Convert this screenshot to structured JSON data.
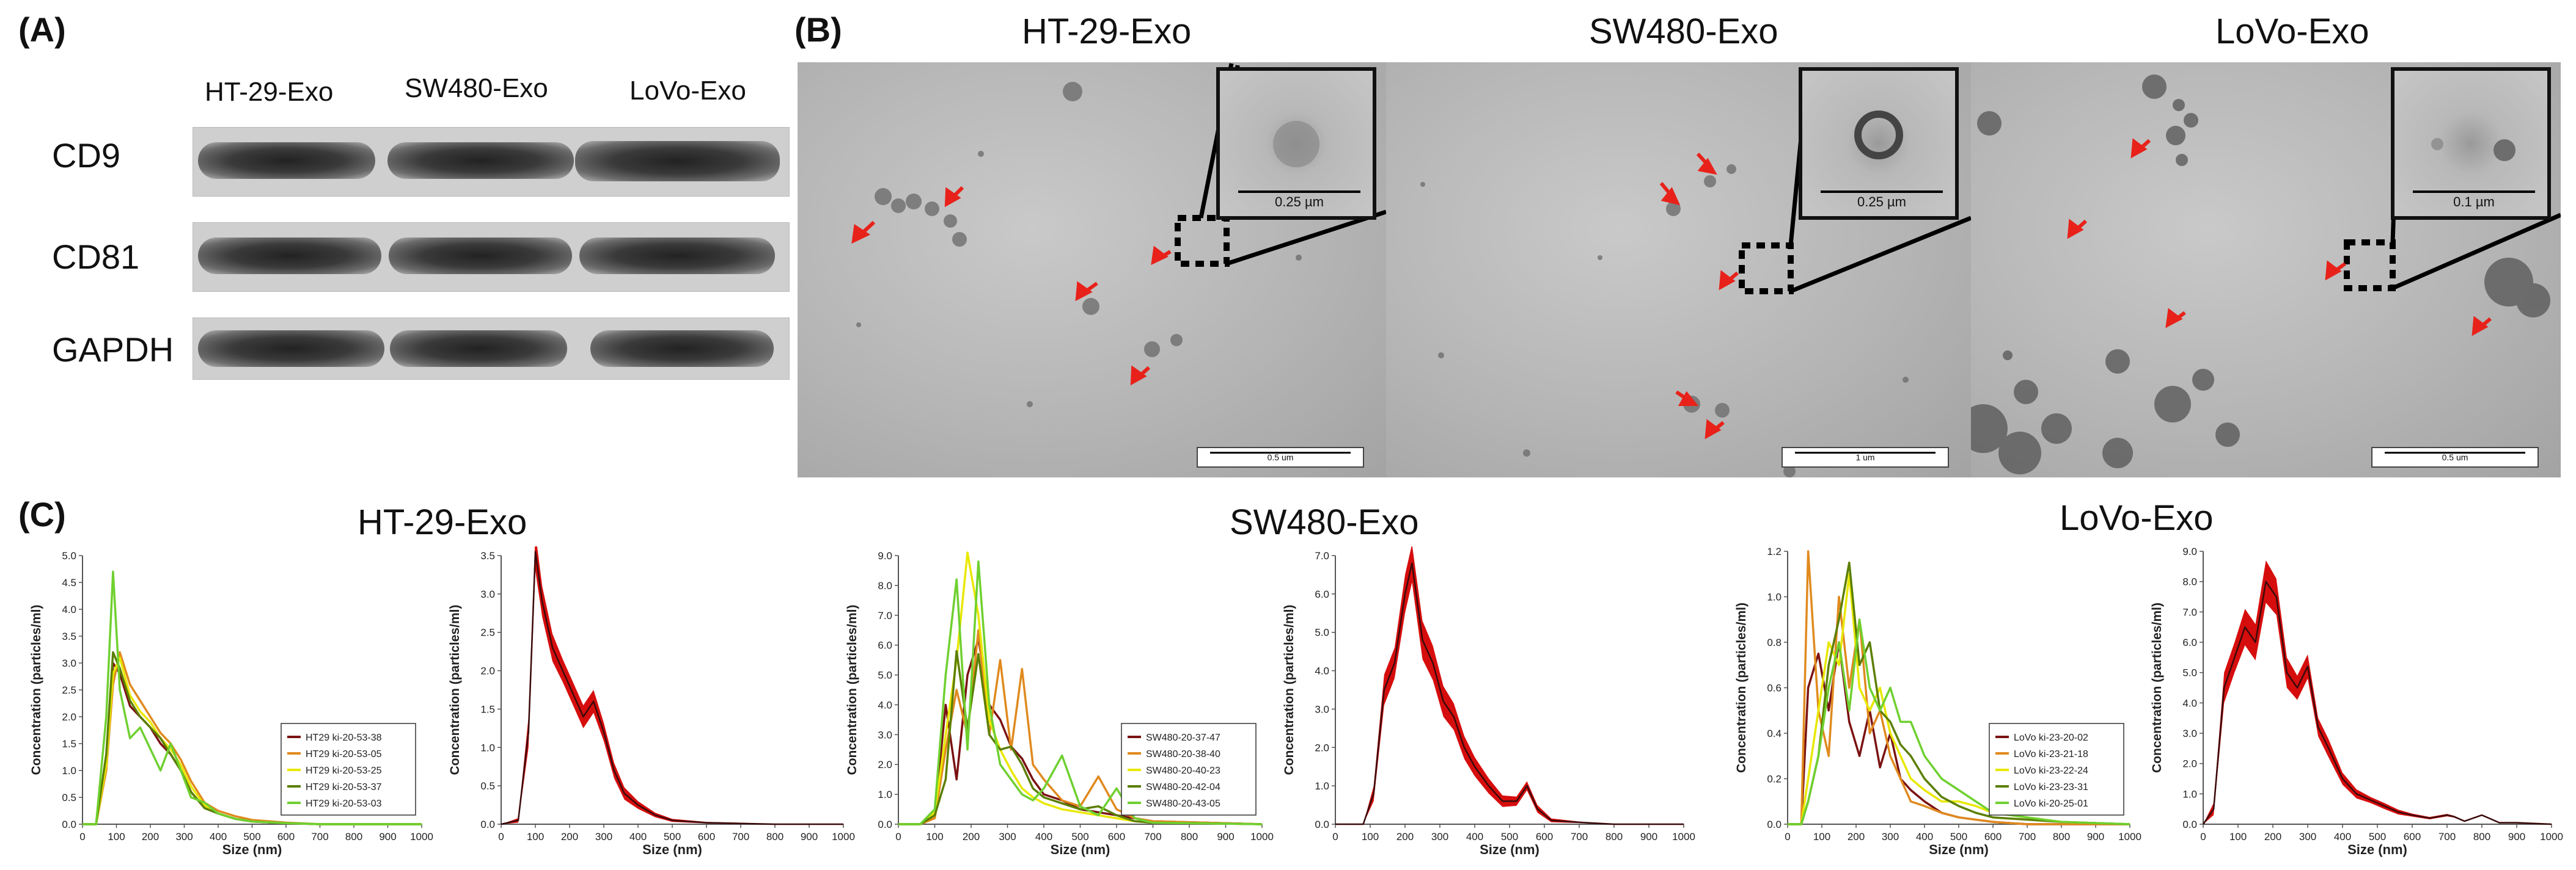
{
  "panel_labels": {
    "a": "(A)",
    "b": "(B)",
    "c": "(C)"
  },
  "western_blot": {
    "lanes": [
      "HT-29-Exo",
      "SW480-Exo",
      "LoVo-Exo"
    ],
    "rows": [
      "CD9",
      "CD81",
      "GAPDH"
    ]
  },
  "tem": {
    "titles": [
      "HT-29-Exo",
      "SW480-Exo",
      "LoVo-Exo"
    ],
    "inset_scales": [
      "0.25 µm",
      "0.25 µm",
      "0.1 µm"
    ],
    "bar_scales": [
      "0.5 um",
      "1 um",
      "0.5 um"
    ]
  },
  "nta_titles": [
    "HT-29-Exo",
    "SW480-Exo",
    "LoVo-Exo"
  ],
  "colors": {
    "red": "#d40000",
    "orange": "#e08a1e",
    "yellow": "#e8e800",
    "olive": "#5b7f00",
    "green": "#6fd030",
    "darkred": "#7a1212",
    "arrow": "#e8221a"
  },
  "chart_data": [
    {
      "type": "line",
      "group": "HT-29-Exo",
      "kind": "replicates",
      "xlabel": "Size (nm)",
      "ylabel": "Concentration (particles/ml)",
      "xlim": [
        0,
        1000
      ],
      "ylim": [
        0,
        5.0
      ],
      "xticks": [
        0,
        100,
        200,
        300,
        400,
        500,
        600,
        700,
        800,
        900,
        1000
      ],
      "yticks": [
        0,
        0.5,
        1.0,
        1.5,
        2.0,
        2.5,
        3.0,
        3.5,
        4.0,
        4.5,
        5.0
      ],
      "series": [
        {
          "name": "HT29 ki-20-53-38",
          "x": [
            0,
            40,
            70,
            90,
            110,
            140,
            170,
            200,
            230,
            260,
            290,
            320,
            360,
            400,
            450,
            500,
            600,
            700,
            1000
          ],
          "values": [
            0,
            0,
            1.2,
            3.0,
            2.8,
            2.2,
            2.0,
            1.8,
            1.5,
            1.3,
            1.0,
            0.6,
            0.3,
            0.2,
            0.1,
            0.05,
            0.02,
            0,
            0
          ]
        },
        {
          "name": "HT29 ki-20-53-05",
          "x": [
            0,
            40,
            70,
            90,
            110,
            140,
            170,
            200,
            230,
            260,
            290,
            320,
            360,
            400,
            450,
            500,
            600,
            700,
            1000
          ],
          "values": [
            0,
            0,
            1.0,
            2.6,
            3.2,
            2.6,
            2.3,
            2.0,
            1.7,
            1.5,
            1.2,
            0.8,
            0.4,
            0.25,
            0.15,
            0.08,
            0.03,
            0,
            0
          ]
        },
        {
          "name": "HT29 ki-20-53-25",
          "x": [
            0,
            40,
            70,
            90,
            110,
            140,
            170,
            200,
            230,
            260,
            290,
            320,
            360,
            400,
            450,
            500,
            600,
            700,
            1000
          ],
          "values": [
            0,
            0,
            1.1,
            2.8,
            3.1,
            2.4,
            2.1,
            1.9,
            1.6,
            1.4,
            1.1,
            0.7,
            0.35,
            0.2,
            0.1,
            0.05,
            0.02,
            0,
            0
          ]
        },
        {
          "name": "HT29 ki-20-53-37",
          "x": [
            0,
            40,
            70,
            90,
            110,
            140,
            170,
            200,
            230,
            260,
            290,
            320,
            360,
            400,
            450,
            500,
            600,
            700,
            1000
          ],
          "values": [
            0,
            0,
            1.3,
            3.2,
            2.9,
            2.3,
            2.0,
            1.8,
            1.6,
            1.3,
            1.0,
            0.6,
            0.3,
            0.2,
            0.1,
            0.05,
            0.02,
            0,
            0
          ]
        },
        {
          "name": "HT29 ki-20-53-03",
          "x": [
            0,
            40,
            70,
            90,
            110,
            140,
            170,
            200,
            230,
            260,
            290,
            320,
            360,
            400,
            450,
            500,
            600,
            700,
            1000
          ],
          "values": [
            0,
            0,
            2.0,
            4.7,
            2.5,
            1.6,
            1.8,
            1.4,
            1.0,
            1.5,
            1.0,
            0.5,
            0.4,
            0.2,
            0.1,
            0.05,
            0.02,
            0,
            0
          ]
        }
      ]
    },
    {
      "type": "area",
      "group": "HT-29-Exo",
      "kind": "mean",
      "xlabel": "Size (nm)",
      "ylabel": "Concentration (particles/ml)",
      "xlim": [
        0,
        1000
      ],
      "ylim": [
        0,
        3.5
      ],
      "xticks": [
        0,
        100,
        200,
        300,
        400,
        500,
        600,
        700,
        800,
        900,
        1000
      ],
      "yticks": [
        0,
        0.5,
        1.0,
        1.5,
        2.0,
        2.5,
        3.0,
        3.5
      ],
      "x": [
        0,
        50,
        80,
        100,
        120,
        150,
        180,
        210,
        240,
        270,
        300,
        330,
        360,
        400,
        450,
        500,
        600,
        700,
        800,
        1000
      ],
      "values": [
        0,
        0.05,
        1.2,
        3.55,
        2.9,
        2.3,
        2.0,
        1.7,
        1.4,
        1.6,
        1.2,
        0.7,
        0.4,
        0.25,
        0.12,
        0.05,
        0.02,
        0.01,
        0,
        0
      ],
      "band": [
        0,
        0.03,
        0.2,
        0.25,
        0.2,
        0.18,
        0.15,
        0.15,
        0.15,
        0.15,
        0.12,
        0.1,
        0.08,
        0.05,
        0.03,
        0.02,
        0.01,
        0.01,
        0,
        0
      ]
    },
    {
      "type": "line",
      "group": "SW480-Exo",
      "kind": "replicates",
      "xlabel": "Size (nm)",
      "ylabel": "Concentration (particles/ml)",
      "xlim": [
        0,
        1000
      ],
      "ylim": [
        0,
        9.0
      ],
      "xticks": [
        0,
        100,
        200,
        300,
        400,
        500,
        600,
        700,
        800,
        900,
        1000
      ],
      "yticks": [
        0,
        1.0,
        2.0,
        3.0,
        4.0,
        5.0,
        6.0,
        7.0,
        8.0,
        9.0
      ],
      "series": [
        {
          "name": "SW480-20-37-47",
          "x": [
            0,
            60,
            100,
            130,
            160,
            190,
            220,
            250,
            280,
            310,
            340,
            370,
            400,
            450,
            500,
            550,
            600,
            650,
            700,
            1000
          ],
          "values": [
            0,
            0,
            0.3,
            4.0,
            1.5,
            5.0,
            6.2,
            4.0,
            3.5,
            2.6,
            2.2,
            1.5,
            1.0,
            0.8,
            0.5,
            0.4,
            0.3,
            0.2,
            0.1,
            0
          ]
        },
        {
          "name": "SW480-20-38-40",
          "x": [
            0,
            60,
            100,
            130,
            160,
            190,
            220,
            250,
            280,
            310,
            340,
            370,
            400,
            450,
            500,
            550,
            600,
            650,
            700,
            1000
          ],
          "values": [
            0,
            0,
            0.2,
            2.5,
            4.5,
            3.0,
            6.5,
            3.0,
            5.5,
            2.5,
            5.2,
            2.0,
            1.5,
            0.8,
            0.6,
            1.6,
            0.5,
            0.2,
            0.1,
            0
          ]
        },
        {
          "name": "SW480-20-40-23",
          "x": [
            0,
            60,
            100,
            130,
            160,
            190,
            220,
            250,
            280,
            310,
            340,
            370,
            400,
            450,
            500,
            550,
            600,
            650,
            700,
            1000
          ],
          "values": [
            0,
            0,
            0.4,
            3.0,
            5.5,
            9.1,
            7.0,
            3.5,
            2.5,
            1.8,
            1.2,
            0.9,
            0.7,
            0.5,
            0.4,
            0.3,
            0.2,
            0.1,
            0.05,
            0
          ]
        },
        {
          "name": "SW480-20-42-04",
          "x": [
            0,
            60,
            100,
            130,
            160,
            190,
            220,
            250,
            280,
            310,
            340,
            370,
            400,
            450,
            500,
            550,
            600,
            650,
            700,
            1000
          ],
          "values": [
            0,
            0,
            0.3,
            1.5,
            5.8,
            3.2,
            5.7,
            3.0,
            2.5,
            2.6,
            2.0,
            1.2,
            0.9,
            0.7,
            0.5,
            0.6,
            0.3,
            0.1,
            0.05,
            0
          ]
        },
        {
          "name": "SW480-20-43-05",
          "x": [
            0,
            60,
            100,
            130,
            160,
            190,
            220,
            250,
            280,
            310,
            340,
            370,
            400,
            450,
            500,
            550,
            600,
            650,
            700,
            1000
          ],
          "values": [
            0,
            0,
            0.5,
            5.0,
            8.2,
            2.5,
            8.8,
            4.0,
            2.0,
            1.5,
            1.0,
            0.8,
            1.2,
            2.3,
            0.6,
            0.3,
            1.2,
            0.2,
            0.05,
            0
          ]
        }
      ]
    },
    {
      "type": "area",
      "group": "SW480-Exo",
      "kind": "mean",
      "xlabel": "Size (nm)",
      "ylabel": "Concentration (particles/ml)",
      "xlim": [
        0,
        1000
      ],
      "ylim": [
        0,
        7.0
      ],
      "xticks": [
        0,
        100,
        200,
        300,
        400,
        500,
        600,
        700,
        800,
        900,
        1000
      ],
      "yticks": [
        0,
        1.0,
        2.0,
        3.0,
        4.0,
        5.0,
        6.0,
        7.0
      ],
      "x": [
        0,
        80,
        110,
        140,
        170,
        200,
        220,
        250,
        280,
        310,
        340,
        370,
        400,
        440,
        480,
        520,
        550,
        580,
        620,
        700,
        800,
        1000
      ],
      "values": [
        0,
        0,
        0.8,
        3.5,
        4.2,
        6.0,
        6.8,
        4.8,
        4.2,
        3.2,
        2.8,
        2.0,
        1.5,
        1.0,
        0.6,
        0.6,
        1.0,
        0.4,
        0.1,
        0.05,
        0,
        0
      ],
      "band": [
        0,
        0,
        0.2,
        0.4,
        0.4,
        0.5,
        0.5,
        0.5,
        0.45,
        0.4,
        0.35,
        0.3,
        0.25,
        0.2,
        0.15,
        0.12,
        0.12,
        0.1,
        0.05,
        0.02,
        0,
        0
      ]
    },
    {
      "type": "line",
      "group": "LoVo-Exo",
      "kind": "replicates",
      "xlabel": "Size (nm)",
      "ylabel": "Concentration (particles/ml)",
      "xlim": [
        0,
        1000
      ],
      "ylim": [
        0,
        1.2
      ],
      "xticks": [
        0,
        100,
        200,
        300,
        400,
        500,
        600,
        700,
        800,
        900,
        1000
      ],
      "yticks": [
        0,
        0.2,
        0.4,
        0.6,
        0.8,
        1.0,
        1.2
      ],
      "series": [
        {
          "name": "LoVo ki-23-20-02",
          "x": [
            0,
            40,
            60,
            90,
            120,
            150,
            180,
            210,
            240,
            270,
            300,
            330,
            360,
            400,
            450,
            500,
            550,
            600,
            700,
            800,
            1000
          ],
          "values": [
            0,
            0,
            0.6,
            0.75,
            0.5,
            0.8,
            0.45,
            0.3,
            0.5,
            0.25,
            0.4,
            0.2,
            0.15,
            0.1,
            0.05,
            0.03,
            0.02,
            0.01,
            0,
            0,
            0
          ]
        },
        {
          "name": "LoVo ki-23-21-18",
          "x": [
            0,
            40,
            60,
            90,
            120,
            150,
            180,
            210,
            240,
            270,
            300,
            330,
            360,
            400,
            450,
            500,
            550,
            600,
            700,
            800,
            1000
          ],
          "values": [
            0,
            0,
            1.2,
            0.5,
            0.3,
            1.0,
            0.6,
            0.9,
            0.4,
            0.5,
            0.3,
            0.2,
            0.1,
            0.08,
            0.05,
            0.03,
            0.02,
            0.01,
            0,
            0,
            0
          ]
        },
        {
          "name": "LoVo ki-23-22-24",
          "x": [
            0,
            40,
            60,
            90,
            120,
            150,
            180,
            210,
            240,
            270,
            300,
            330,
            360,
            400,
            450,
            500,
            550,
            600,
            700,
            800,
            1000
          ],
          "values": [
            0,
            0,
            0.2,
            0.5,
            0.8,
            0.7,
            1.1,
            0.6,
            0.5,
            0.6,
            0.4,
            0.3,
            0.2,
            0.15,
            0.1,
            0.1,
            0.08,
            0.05,
            0.03,
            0.01,
            0
          ]
        },
        {
          "name": "LoVo ki-23-23-31",
          "x": [
            0,
            40,
            60,
            90,
            120,
            150,
            180,
            210,
            240,
            270,
            300,
            330,
            360,
            400,
            450,
            500,
            550,
            600,
            700,
            800,
            1000
          ],
          "values": [
            0,
            0,
            0.1,
            0.3,
            0.7,
            0.9,
            1.15,
            0.7,
            0.8,
            0.5,
            0.45,
            0.35,
            0.3,
            0.2,
            0.12,
            0.08,
            0.05,
            0.03,
            0.02,
            0.01,
            0
          ]
        },
        {
          "name": "LoVo ki-20-25-01",
          "x": [
            0,
            40,
            60,
            90,
            120,
            150,
            180,
            210,
            240,
            270,
            300,
            330,
            360,
            400,
            450,
            500,
            550,
            600,
            700,
            800,
            1000
          ],
          "values": [
            0,
            0,
            0.1,
            0.3,
            0.6,
            0.8,
            0.5,
            0.9,
            0.6,
            0.5,
            0.6,
            0.45,
            0.45,
            0.3,
            0.2,
            0.15,
            0.1,
            0.05,
            0.03,
            0.01,
            0
          ]
        }
      ]
    },
    {
      "type": "area",
      "group": "LoVo-Exo",
      "kind": "mean",
      "xlabel": "Size (nm)",
      "ylabel": "Concentration (particles/ml)",
      "xlim": [
        0,
        1000
      ],
      "ylim": [
        0,
        9.0
      ],
      "xticks": [
        0,
        100,
        200,
        300,
        400,
        500,
        600,
        700,
        800,
        900,
        1000
      ],
      "yticks": [
        0,
        1.0,
        2.0,
        3.0,
        4.0,
        5.0,
        6.0,
        7.0,
        8.0,
        9.0
      ],
      "x": [
        0,
        30,
        60,
        90,
        120,
        150,
        180,
        210,
        240,
        270,
        300,
        330,
        360,
        400,
        440,
        480,
        520,
        560,
        600,
        650,
        700,
        720,
        750,
        800,
        850,
        900,
        1000
      ],
      "values": [
        0,
        0.5,
        4.5,
        5.5,
        6.5,
        6.0,
        8.0,
        7.5,
        5.0,
        4.5,
        5.2,
        3.2,
        2.5,
        1.5,
        1.0,
        0.8,
        0.6,
        0.4,
        0.3,
        0.2,
        0.3,
        0.25,
        0.1,
        0.3,
        0.05,
        0.05,
        0
      ],
      "band": [
        0,
        0.2,
        0.5,
        0.5,
        0.6,
        0.6,
        0.7,
        0.6,
        0.5,
        0.4,
        0.4,
        0.3,
        0.3,
        0.2,
        0.15,
        0.1,
        0.1,
        0.08,
        0.05,
        0.04,
        0.04,
        0.03,
        0.02,
        0.02,
        0.01,
        0.01,
        0
      ]
    }
  ]
}
